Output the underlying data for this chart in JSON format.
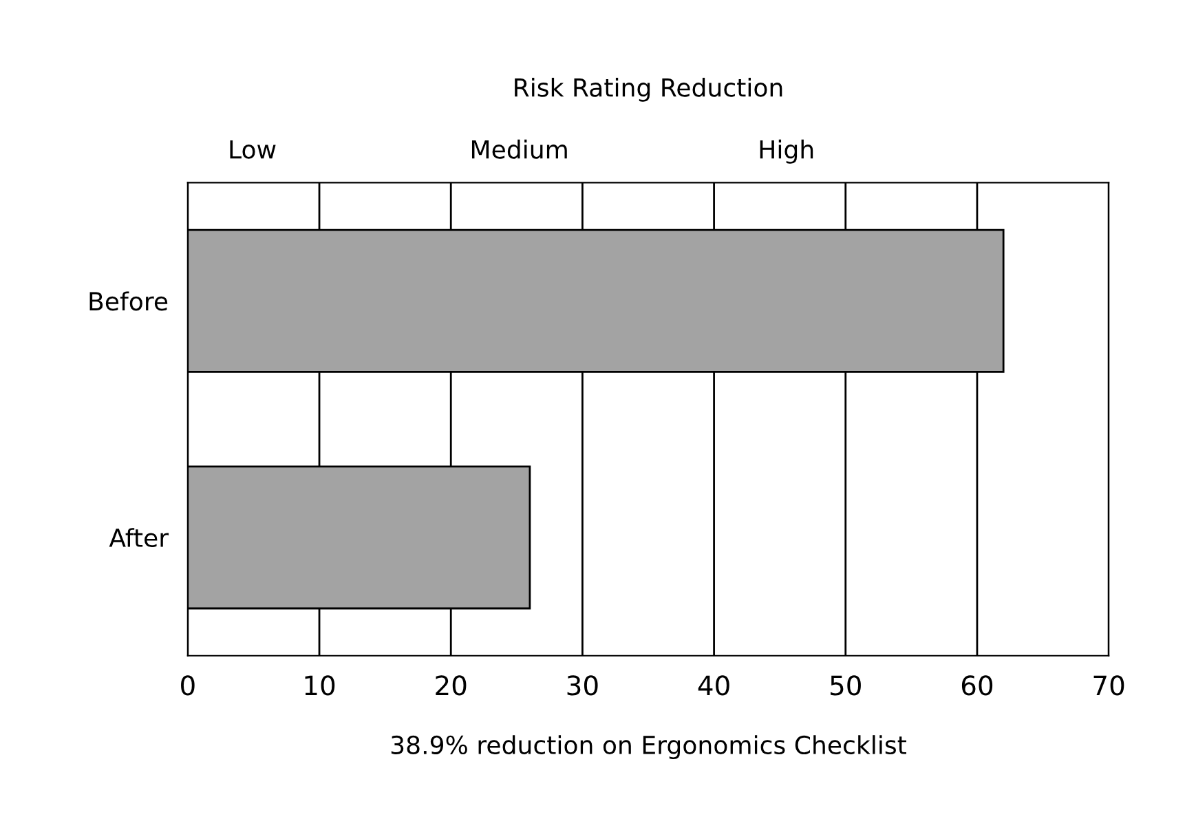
{
  "chart_data": {
    "type": "bar",
    "orientation": "horizontal",
    "title": "Risk Rating Reduction",
    "xlabel": "38.9% reduction on Ergonomics Checklist",
    "categories": [
      "Before",
      "After"
    ],
    "values": [
      62,
      26
    ],
    "color": "#a3a3a3",
    "xlim": [
      0,
      70
    ],
    "xticks": [
      0,
      10,
      20,
      30,
      40,
      50,
      60,
      70
    ],
    "annotations": [
      "Low",
      "Medium",
      "High"
    ],
    "grid": "x",
    "legend": false
  }
}
